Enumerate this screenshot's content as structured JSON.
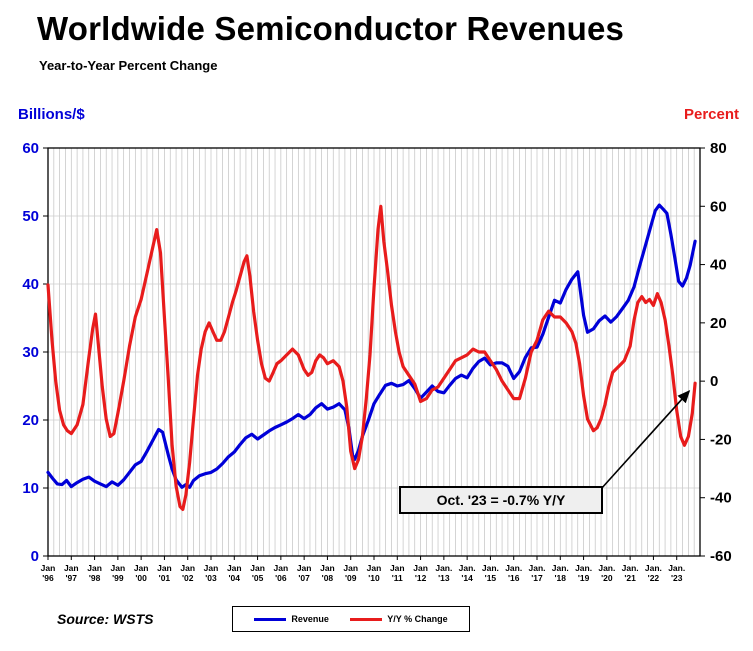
{
  "title": "Worldwide Semiconductor Revenues",
  "subtitle": "Year-to-Year Percent Change",
  "left_axis_title": "Billions/$",
  "right_axis_title": "Percent",
  "source": "Source: WSTS",
  "annotation": {
    "text": "Oct. '23 = -0.7% Y/Y"
  },
  "legend": {
    "items": [
      {
        "label": "Revenue",
        "color": "#0000d8"
      },
      {
        "label": "Y/Y % Change",
        "color": "#e81c1c"
      }
    ]
  },
  "x_axis_labels": [
    {
      "m": "Jan",
      "y": "'96"
    },
    {
      "m": "Jan",
      "y": "'97"
    },
    {
      "m": "Jan",
      "y": "'98"
    },
    {
      "m": "Jan",
      "y": "'99"
    },
    {
      "m": "Jan",
      "y": "'00"
    },
    {
      "m": "Jan",
      "y": "'01"
    },
    {
      "m": "Jan",
      "y": "'02"
    },
    {
      "m": "Jan",
      "y": "'03"
    },
    {
      "m": "Jan",
      "y": "'04"
    },
    {
      "m": "Jan",
      "y": "'05"
    },
    {
      "m": "Jan",
      "y": "'06"
    },
    {
      "m": "Jan",
      "y": "'07"
    },
    {
      "m": "Jan",
      "y": "'08"
    },
    {
      "m": "Jan",
      "y": "'09"
    },
    {
      "m": "Jan",
      "y": "'10"
    },
    {
      "m": "Jan",
      "y": "'11"
    },
    {
      "m": "Jan",
      "y": "'12"
    },
    {
      "m": "Jan.",
      "y": "'13"
    },
    {
      "m": "Jan.",
      "y": "'14"
    },
    {
      "m": "Jan.",
      "y": "'15"
    },
    {
      "m": "Jan.",
      "y": "'16"
    },
    {
      "m": "Jan.",
      "y": "'17"
    },
    {
      "m": "Jan.",
      "y": "'18"
    },
    {
      "m": "Jan.",
      "y": "'19"
    },
    {
      "m": "Jan.",
      "y": "'20"
    },
    {
      "m": "Jan.",
      "y": "'21"
    },
    {
      "m": "Jan.",
      "y": "'22"
    },
    {
      "m": "Jan.",
      "y": "'23"
    }
  ],
  "chart_data": {
    "type": "line",
    "title": "Worldwide Semiconductor Revenues",
    "subtitle": "Year-to-Year Percent Change",
    "x_unit": "year (monthly series, Jan 1996 - Oct 2023)",
    "x_range": [
      1996,
      2024
    ],
    "left_axis": {
      "label": "Billions/$",
      "range": [
        0,
        60
      ],
      "ticks": [
        0,
        10,
        20,
        30,
        40,
        50,
        60
      ],
      "color": "#0000d8"
    },
    "right_axis": {
      "label": "Percent",
      "range": [
        -60,
        80
      ],
      "ticks": [
        -60,
        -40,
        -20,
        0,
        20,
        40,
        60,
        80
      ],
      "color": "#000000"
    },
    "grid": {
      "vertical_interval_years": 0.25,
      "color": "#c2c2c2",
      "horizontal": true
    },
    "legend_position": "bottom-center",
    "annotation": {
      "text": "Oct. '23 = -0.7% Y/Y",
      "points_to": [
        2023.79,
        -0.7
      ]
    },
    "series": [
      {
        "name": "Revenue",
        "axis": "left",
        "color": "#0000d8",
        "points": [
          [
            1996.0,
            12.3
          ],
          [
            1996.2,
            11.4
          ],
          [
            1996.4,
            10.6
          ],
          [
            1996.6,
            10.5
          ],
          [
            1996.8,
            11.1
          ],
          [
            1997.0,
            10.2
          ],
          [
            1997.25,
            10.8
          ],
          [
            1997.5,
            11.3
          ],
          [
            1997.75,
            11.6
          ],
          [
            1998.0,
            11.0
          ],
          [
            1998.25,
            10.6
          ],
          [
            1998.5,
            10.2
          ],
          [
            1998.75,
            10.9
          ],
          [
            1999.0,
            10.4
          ],
          [
            1999.25,
            11.2
          ],
          [
            1999.5,
            12.3
          ],
          [
            1999.75,
            13.4
          ],
          [
            2000.0,
            13.9
          ],
          [
            2000.25,
            15.4
          ],
          [
            2000.5,
            17.0
          ],
          [
            2000.75,
            18.6
          ],
          [
            2000.92,
            18.2
          ],
          [
            2001.17,
            14.8
          ],
          [
            2001.33,
            12.8
          ],
          [
            2001.5,
            11.2
          ],
          [
            2001.75,
            10.1
          ],
          [
            2001.92,
            10.5
          ],
          [
            2002.08,
            10.1
          ],
          [
            2002.25,
            11.1
          ],
          [
            2002.5,
            11.8
          ],
          [
            2002.75,
            12.1
          ],
          [
            2003.0,
            12.3
          ],
          [
            2003.25,
            12.8
          ],
          [
            2003.5,
            13.6
          ],
          [
            2003.75,
            14.6
          ],
          [
            2004.0,
            15.3
          ],
          [
            2004.25,
            16.4
          ],
          [
            2004.5,
            17.4
          ],
          [
            2004.75,
            17.9
          ],
          [
            2005.0,
            17.2
          ],
          [
            2005.25,
            17.8
          ],
          [
            2005.5,
            18.4
          ],
          [
            2005.75,
            18.9
          ],
          [
            2006.0,
            19.3
          ],
          [
            2006.25,
            19.7
          ],
          [
            2006.5,
            20.2
          ],
          [
            2006.75,
            20.8
          ],
          [
            2007.0,
            20.2
          ],
          [
            2007.25,
            20.8
          ],
          [
            2007.5,
            21.8
          ],
          [
            2007.75,
            22.4
          ],
          [
            2008.0,
            21.6
          ],
          [
            2008.25,
            21.9
          ],
          [
            2008.5,
            22.4
          ],
          [
            2008.75,
            21.5
          ],
          [
            2008.92,
            18.8
          ],
          [
            2009.08,
            14.8
          ],
          [
            2009.17,
            14.2
          ],
          [
            2009.33,
            15.5
          ],
          [
            2009.5,
            17.6
          ],
          [
            2009.75,
            19.9
          ],
          [
            2010.0,
            22.4
          ],
          [
            2010.25,
            23.8
          ],
          [
            2010.5,
            25.1
          ],
          [
            2010.75,
            25.4
          ],
          [
            2011.0,
            25.0
          ],
          [
            2011.25,
            25.2
          ],
          [
            2011.5,
            25.8
          ],
          [
            2011.75,
            24.6
          ],
          [
            2012.0,
            23.2
          ],
          [
            2012.25,
            24.1
          ],
          [
            2012.5,
            25.0
          ],
          [
            2012.75,
            24.2
          ],
          [
            2013.0,
            24.0
          ],
          [
            2013.25,
            25.1
          ],
          [
            2013.5,
            26.1
          ],
          [
            2013.75,
            26.6
          ],
          [
            2014.0,
            26.2
          ],
          [
            2014.25,
            27.6
          ],
          [
            2014.5,
            28.6
          ],
          [
            2014.75,
            29.1
          ],
          [
            2015.0,
            28.1
          ],
          [
            2015.25,
            28.4
          ],
          [
            2015.5,
            28.4
          ],
          [
            2015.75,
            27.9
          ],
          [
            2016.0,
            26.1
          ],
          [
            2016.25,
            27.1
          ],
          [
            2016.5,
            29.2
          ],
          [
            2016.75,
            30.6
          ],
          [
            2017.0,
            30.7
          ],
          [
            2017.25,
            32.6
          ],
          [
            2017.5,
            35.1
          ],
          [
            2017.75,
            37.6
          ],
          [
            2018.0,
            37.2
          ],
          [
            2018.25,
            39.2
          ],
          [
            2018.5,
            40.7
          ],
          [
            2018.75,
            41.8
          ],
          [
            2019.0,
            35.4
          ],
          [
            2019.17,
            32.9
          ],
          [
            2019.42,
            33.4
          ],
          [
            2019.67,
            34.6
          ],
          [
            2019.92,
            35.3
          ],
          [
            2020.17,
            34.4
          ],
          [
            2020.42,
            35.2
          ],
          [
            2020.67,
            36.4
          ],
          [
            2020.92,
            37.6
          ],
          [
            2021.17,
            39.6
          ],
          [
            2021.42,
            42.8
          ],
          [
            2021.67,
            45.8
          ],
          [
            2021.92,
            48.9
          ],
          [
            2022.08,
            50.8
          ],
          [
            2022.25,
            51.6
          ],
          [
            2022.42,
            51.0
          ],
          [
            2022.58,
            50.4
          ],
          [
            2022.75,
            47.3
          ],
          [
            2022.92,
            43.8
          ],
          [
            2023.08,
            40.4
          ],
          [
            2023.25,
            39.7
          ],
          [
            2023.42,
            40.9
          ],
          [
            2023.58,
            42.8
          ],
          [
            2023.79,
            46.3
          ]
        ]
      },
      {
        "name": "Y/Y % Change",
        "axis": "right",
        "color": "#e81c1c",
        "points": [
          [
            1996.0,
            33
          ],
          [
            1996.17,
            14
          ],
          [
            1996.33,
            0
          ],
          [
            1996.5,
            -10
          ],
          [
            1996.67,
            -15
          ],
          [
            1996.83,
            -17
          ],
          [
            1997.0,
            -18
          ],
          [
            1997.25,
            -15
          ],
          [
            1997.5,
            -8
          ],
          [
            1997.75,
            8
          ],
          [
            1997.92,
            18
          ],
          [
            1998.04,
            23
          ],
          [
            1998.17,
            12
          ],
          [
            1998.33,
            -2
          ],
          [
            1998.5,
            -13
          ],
          [
            1998.67,
            -19
          ],
          [
            1998.83,
            -18
          ],
          [
            1999.0,
            -11
          ],
          [
            1999.25,
            0
          ],
          [
            1999.5,
            12
          ],
          [
            1999.75,
            22
          ],
          [
            2000.0,
            28
          ],
          [
            2000.25,
            37
          ],
          [
            2000.5,
            46
          ],
          [
            2000.67,
            52
          ],
          [
            2000.83,
            44
          ],
          [
            2001.0,
            22
          ],
          [
            2001.17,
            0
          ],
          [
            2001.33,
            -22
          ],
          [
            2001.5,
            -36
          ],
          [
            2001.67,
            -43
          ],
          [
            2001.79,
            -44
          ],
          [
            2001.92,
            -39
          ],
          [
            2002.08,
            -28
          ],
          [
            2002.25,
            -13
          ],
          [
            2002.42,
            2
          ],
          [
            2002.58,
            11
          ],
          [
            2002.75,
            17
          ],
          [
            2002.92,
            20
          ],
          [
            2003.08,
            17
          ],
          [
            2003.25,
            14
          ],
          [
            2003.42,
            14
          ],
          [
            2003.58,
            17
          ],
          [
            2003.75,
            22
          ],
          [
            2003.92,
            27
          ],
          [
            2004.08,
            31
          ],
          [
            2004.25,
            36
          ],
          [
            2004.42,
            41
          ],
          [
            2004.54,
            43
          ],
          [
            2004.67,
            36
          ],
          [
            2004.83,
            24
          ],
          [
            2005.0,
            14
          ],
          [
            2005.17,
            6
          ],
          [
            2005.33,
            1
          ],
          [
            2005.5,
            0
          ],
          [
            2005.67,
            3
          ],
          [
            2005.83,
            6
          ],
          [
            2006.0,
            7
          ],
          [
            2006.25,
            9
          ],
          [
            2006.5,
            11
          ],
          [
            2006.75,
            9
          ],
          [
            2007.0,
            4
          ],
          [
            2007.17,
            2
          ],
          [
            2007.33,
            3
          ],
          [
            2007.5,
            7
          ],
          [
            2007.67,
            9
          ],
          [
            2007.83,
            8
          ],
          [
            2008.0,
            6
          ],
          [
            2008.25,
            7
          ],
          [
            2008.5,
            5
          ],
          [
            2008.67,
            0
          ],
          [
            2008.83,
            -9
          ],
          [
            2009.0,
            -24
          ],
          [
            2009.17,
            -30
          ],
          [
            2009.33,
            -27
          ],
          [
            2009.5,
            -19
          ],
          [
            2009.67,
            -6
          ],
          [
            2009.83,
            9
          ],
          [
            2010.0,
            32
          ],
          [
            2010.17,
            52
          ],
          [
            2010.29,
            60
          ],
          [
            2010.42,
            48
          ],
          [
            2010.58,
            38
          ],
          [
            2010.75,
            26
          ],
          [
            2010.92,
            17
          ],
          [
            2011.08,
            10
          ],
          [
            2011.25,
            5
          ],
          [
            2011.5,
            2
          ],
          [
            2011.75,
            -1
          ],
          [
            2012.0,
            -7
          ],
          [
            2012.25,
            -6
          ],
          [
            2012.5,
            -3
          ],
          [
            2012.75,
            -2
          ],
          [
            2013.0,
            1
          ],
          [
            2013.25,
            4
          ],
          [
            2013.5,
            7
          ],
          [
            2013.75,
            8
          ],
          [
            2014.0,
            9
          ],
          [
            2014.25,
            11
          ],
          [
            2014.5,
            10
          ],
          [
            2014.75,
            10
          ],
          [
            2015.0,
            7
          ],
          [
            2015.25,
            4
          ],
          [
            2015.5,
            0
          ],
          [
            2015.75,
            -3
          ],
          [
            2016.0,
            -6
          ],
          [
            2016.25,
            -6
          ],
          [
            2016.5,
            1
          ],
          [
            2016.75,
            10
          ],
          [
            2017.0,
            14
          ],
          [
            2017.25,
            21
          ],
          [
            2017.5,
            24
          ],
          [
            2017.75,
            22
          ],
          [
            2018.0,
            22
          ],
          [
            2018.25,
            20
          ],
          [
            2018.5,
            17
          ],
          [
            2018.67,
            13
          ],
          [
            2018.83,
            6
          ],
          [
            2019.0,
            -5
          ],
          [
            2019.17,
            -13
          ],
          [
            2019.42,
            -17
          ],
          [
            2019.58,
            -16
          ],
          [
            2019.75,
            -13
          ],
          [
            2019.92,
            -8
          ],
          [
            2020.08,
            -2
          ],
          [
            2020.25,
            3
          ],
          [
            2020.5,
            5
          ],
          [
            2020.75,
            7
          ],
          [
            2021.0,
            12
          ],
          [
            2021.17,
            21
          ],
          [
            2021.33,
            27
          ],
          [
            2021.5,
            29
          ],
          [
            2021.67,
            27
          ],
          [
            2021.83,
            28
          ],
          [
            2022.0,
            26
          ],
          [
            2022.17,
            30
          ],
          [
            2022.33,
            27
          ],
          [
            2022.5,
            21
          ],
          [
            2022.67,
            12
          ],
          [
            2022.83,
            2
          ],
          [
            2023.0,
            -10
          ],
          [
            2023.17,
            -19
          ],
          [
            2023.33,
            -22
          ],
          [
            2023.5,
            -19
          ],
          [
            2023.67,
            -11
          ],
          [
            2023.79,
            -0.7
          ]
        ]
      }
    ]
  }
}
